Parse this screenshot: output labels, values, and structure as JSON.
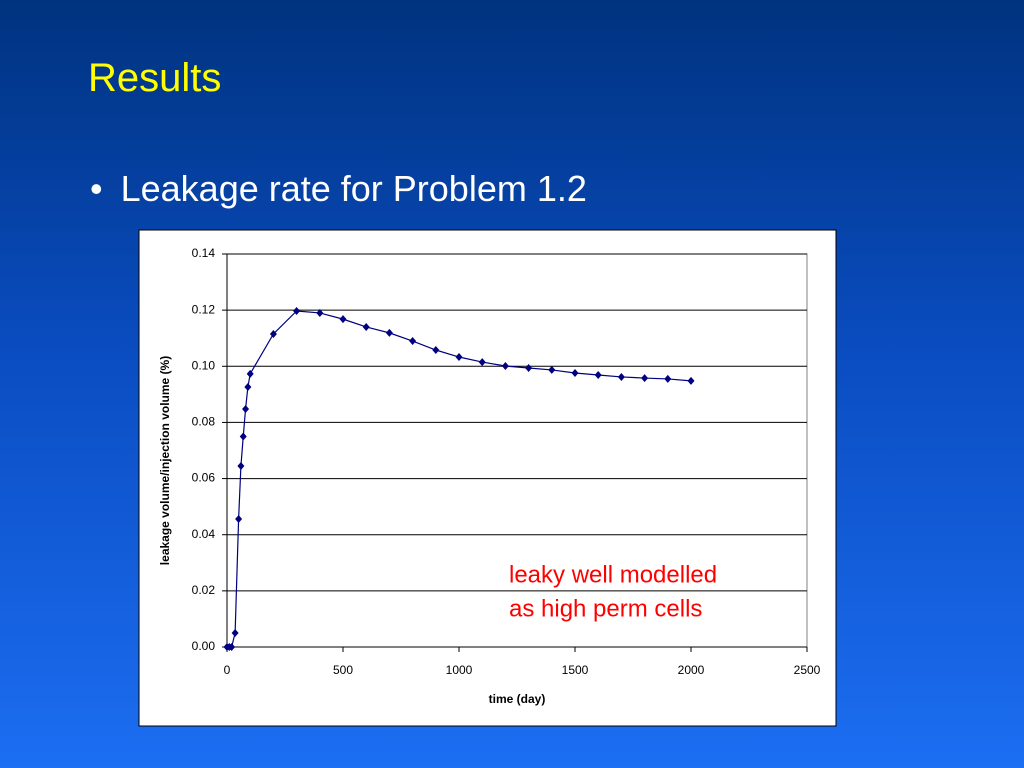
{
  "slide": {
    "title": "Results",
    "bullet": "Leakage rate for Problem 1.2"
  },
  "chart_data": {
    "type": "line",
    "x_label": "time (day)",
    "y_label": "leakage volume/injection volume (%)",
    "annotation": [
      "leaky well modelled",
      "as high perm cells"
    ],
    "x": [
      0,
      10,
      20,
      35,
      50,
      60,
      70,
      80,
      90,
      100,
      200,
      300,
      400,
      500,
      600,
      700,
      800,
      900,
      1000,
      1100,
      1200,
      1300,
      1400,
      1500,
      1600,
      1700,
      1800,
      1900,
      2000
    ],
    "series": [
      {
        "name": "leakage",
        "color": "#000080",
        "values": [
          0,
          0,
          0,
          0.005,
          0.0456,
          0.0645,
          0.075,
          0.0848,
          0.0926,
          0.0973,
          0.1115,
          0.1197,
          0.119,
          0.1168,
          0.114,
          0.1119,
          0.109,
          0.1058,
          0.1033,
          0.1015,
          0.1001,
          0.0994,
          0.0987,
          0.0976,
          0.0969,
          0.0962,
          0.0958,
          0.0955,
          0.0948
        ]
      }
    ],
    "xlim": [
      0,
      2500
    ],
    "xticks": [
      0,
      500,
      1000,
      1500,
      2000,
      2500
    ],
    "ylim": [
      0,
      0.14
    ],
    "yticks": [
      {
        "value": 0,
        "label": "0.00"
      },
      0.02,
      0.04,
      0.06,
      0.08,
      {
        "value": 0.1,
        "label": "0.10"
      },
      0.12,
      0.14
    ],
    "grid": true
  }
}
